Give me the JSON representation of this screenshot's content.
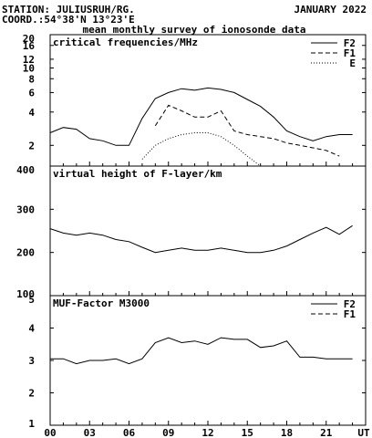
{
  "header": {
    "station": "STATION: JULIUSRUH/RG.",
    "coord": "COORD.:54°38'N 13°23'E",
    "date": "JANUARY 2022",
    "title": "mean monthly survey of ionosonde data"
  },
  "x_axis": {
    "tick_labels": [
      "00",
      "03",
      "06",
      "09",
      "12",
      "15",
      "18",
      "21",
      "UT"
    ],
    "range": [
      0,
      24
    ]
  },
  "chart_data": [
    {
      "type": "line",
      "title": "critical frequencies/MHz",
      "y_scale": "log",
      "ylim": [
        1.3,
        20
      ],
      "y_tick_labels": [
        "20",
        "16",
        "12",
        "10",
        "8",
        "6",
        "4",
        "2"
      ],
      "y_tick_values": [
        20,
        16,
        12,
        10,
        8,
        6,
        4,
        2
      ],
      "legend_position": "top-right",
      "series": [
        {
          "name": "F2",
          "style": "solid",
          "x": [
            0,
            1,
            2,
            3,
            4,
            5,
            6,
            7,
            8,
            9,
            10,
            11,
            12,
            13,
            14,
            15,
            16,
            17,
            18,
            19,
            20,
            21,
            22,
            23
          ],
          "y": [
            2.6,
            2.9,
            2.8,
            2.3,
            2.2,
            2.0,
            2.0,
            3.5,
            5.3,
            6.0,
            6.5,
            6.3,
            6.6,
            6.4,
            6.0,
            5.2,
            4.5,
            3.6,
            2.7,
            2.4,
            2.2,
            2.4,
            2.5,
            2.5
          ]
        },
        {
          "name": "F1",
          "style": "dashed",
          "x": [
            8,
            9,
            10,
            11,
            12,
            13,
            14,
            15,
            16,
            17,
            18,
            19,
            20,
            21,
            22
          ],
          "y": [
            3.0,
            4.6,
            4.1,
            3.6,
            3.6,
            4.1,
            2.7,
            2.5,
            2.4,
            2.3,
            2.1,
            2.0,
            1.9,
            1.8,
            1.6
          ]
        },
        {
          "name": "E",
          "style": "dotted",
          "x": [
            7,
            8,
            9,
            10,
            11,
            12,
            13,
            14,
            15,
            16
          ],
          "y": [
            1.5,
            2.0,
            2.3,
            2.5,
            2.6,
            2.6,
            2.4,
            2.0,
            1.6,
            1.3
          ]
        }
      ]
    },
    {
      "type": "line",
      "title": "virtual height of F-layer/km",
      "y_scale": "linear",
      "ylim": [
        100,
        400
      ],
      "y_tick_labels": [
        "400",
        "300",
        "200",
        "100"
      ],
      "y_tick_values": [
        400,
        300,
        200,
        100
      ],
      "series": [
        {
          "style": "solid",
          "x": [
            0,
            1,
            2,
            3,
            4,
            5,
            6,
            7,
            8,
            9,
            10,
            11,
            12,
            13,
            14,
            15,
            16,
            17,
            18,
            19,
            20,
            21,
            22,
            23
          ],
          "y": [
            255,
            245,
            240,
            245,
            240,
            230,
            225,
            212,
            200,
            205,
            210,
            205,
            205,
            210,
            205,
            200,
            200,
            205,
            215,
            230,
            245,
            258,
            242,
            262
          ]
        }
      ]
    },
    {
      "type": "line",
      "title": "MUF-Factor M3000",
      "y_scale": "linear",
      "ylim": [
        1,
        5
      ],
      "y_tick_labels": [
        "5",
        "4",
        "3",
        "2",
        "1"
      ],
      "y_tick_values": [
        5,
        4,
        3,
        2,
        1
      ],
      "legend_position": "top-right",
      "series": [
        {
          "name": "F2",
          "style": "solid",
          "x": [
            0,
            1,
            2,
            3,
            4,
            5,
            6,
            7,
            8,
            9,
            10,
            11,
            12,
            13,
            14,
            15,
            16,
            17,
            18,
            19,
            20,
            21,
            22,
            23
          ],
          "y": [
            3.05,
            3.05,
            2.9,
            3.0,
            3.0,
            3.05,
            2.9,
            3.05,
            3.55,
            3.7,
            3.55,
            3.6,
            3.5,
            3.7,
            3.65,
            3.65,
            3.4,
            3.45,
            3.6,
            3.1,
            3.1,
            3.05,
            3.05,
            3.05
          ]
        },
        {
          "name": "F1",
          "style": "dashed",
          "x": [],
          "y": []
        }
      ]
    }
  ]
}
